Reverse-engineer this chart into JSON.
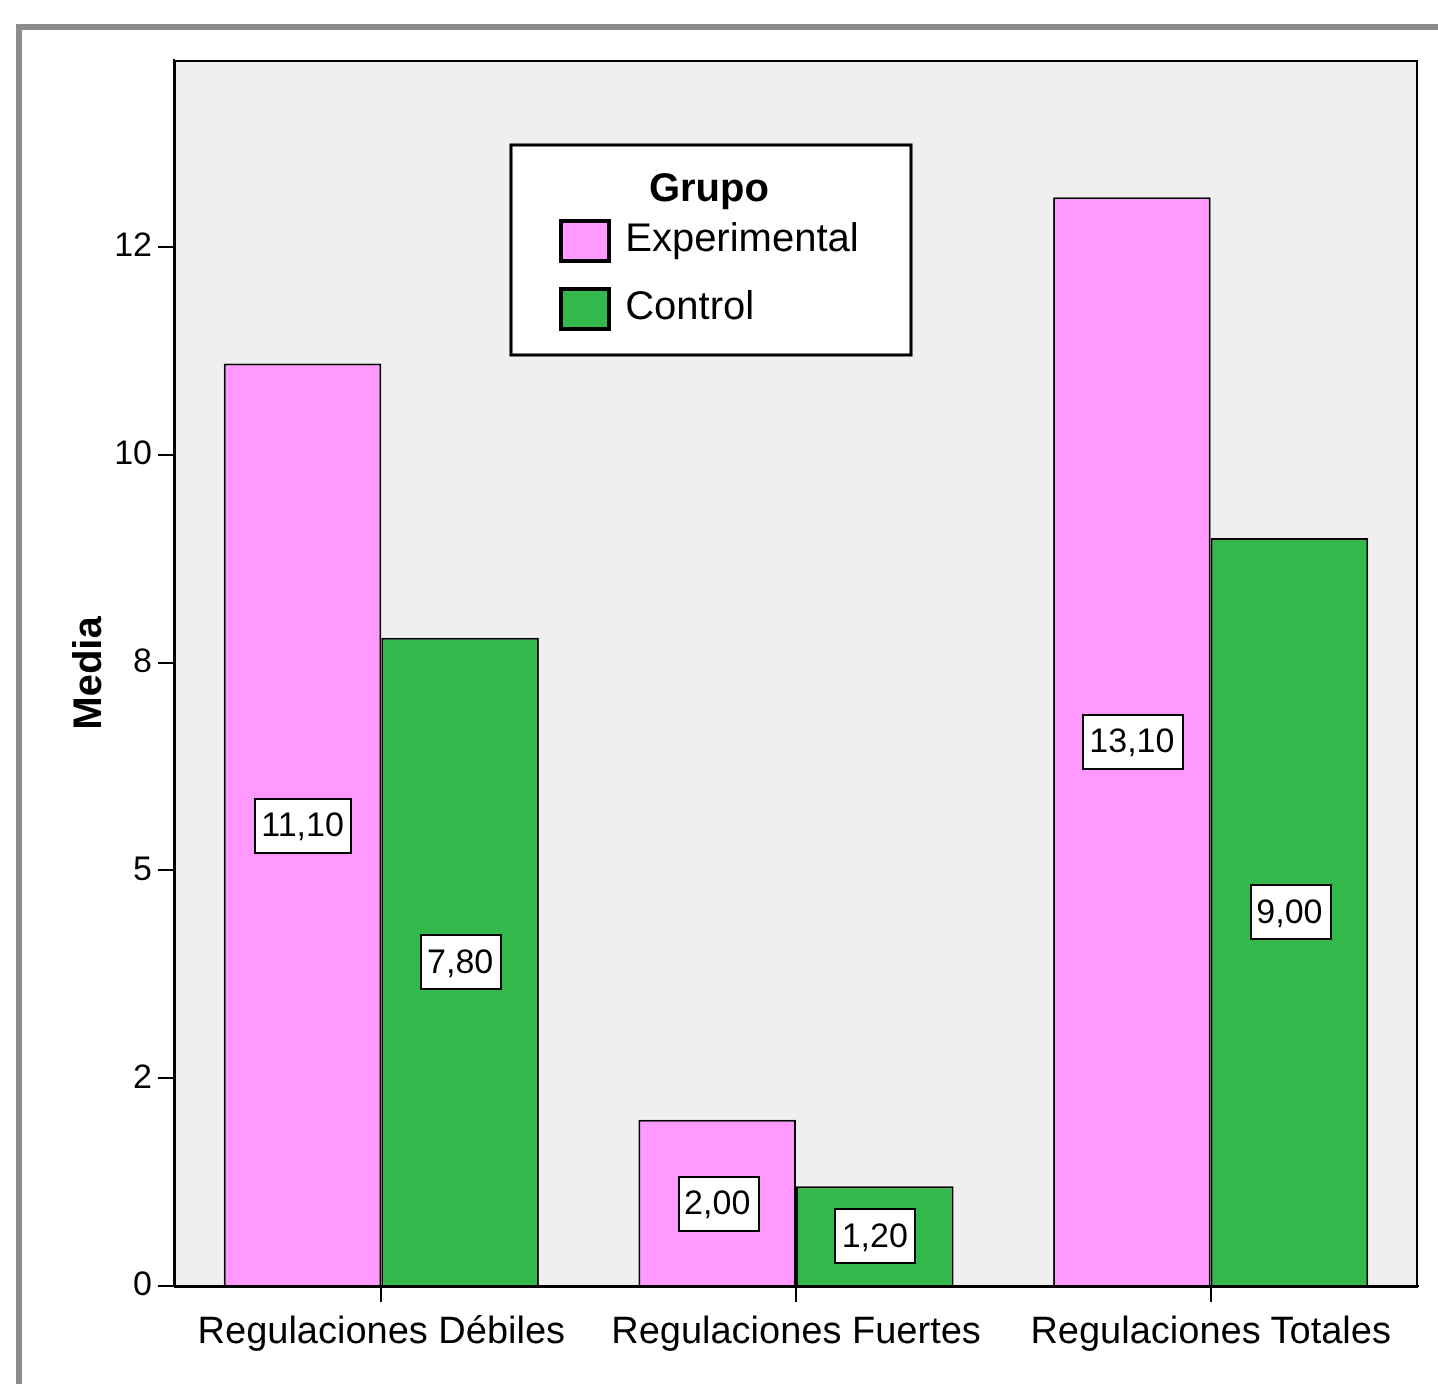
{
  "chart_data": {
    "type": "bar",
    "ylabel": "Media",
    "legend_title": "Grupo",
    "categories": [
      "Regulaciones Débiles",
      "Regulaciones Fuertes",
      "Regulaciones Totales"
    ],
    "series": [
      {
        "name": "Experimental",
        "color": "#ff99ff",
        "values": [
          11.1,
          2.0,
          13.1
        ],
        "value_labels": [
          "11,10",
          "2,00",
          "13,10"
        ]
      },
      {
        "name": "Control",
        "color": "#33b84b",
        "values": [
          7.8,
          1.2,
          9.0
        ],
        "value_labels": [
          "7,80",
          "1,20",
          "9,00"
        ]
      }
    ],
    "ylim": [
      0,
      14.75
    ],
    "yticks": [
      0,
      {
        "value": 2.5,
        "label": "2"
      },
      5,
      {
        "value": 7.5,
        "label": "8"
      },
      10,
      {
        "value": 12.5,
        "label": "12"
      }
    ],
    "grid": false,
    "legend": "top"
  }
}
